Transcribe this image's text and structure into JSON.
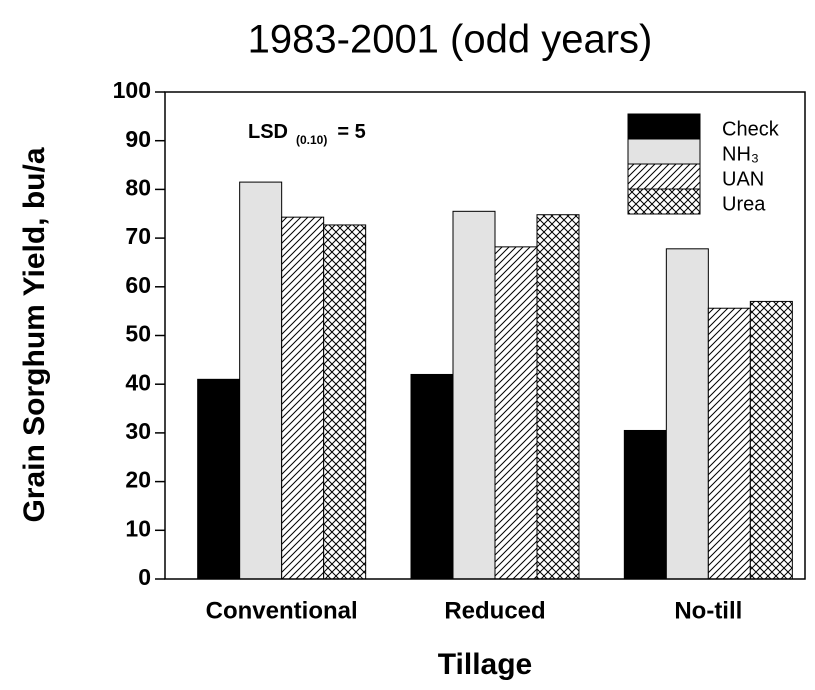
{
  "chart_data": {
    "type": "bar",
    "title": "1983-2001  (odd  years)",
    "x_label": "Tillage",
    "y_label": "Grain Sorghum Yield, bu/a",
    "annotation": [
      "LSD",
      "(0.10)",
      "= 5"
    ],
    "categories": [
      "Conventional",
      "Reduced",
      "No-till"
    ],
    "series": [
      {
        "name": "Check",
        "color": "#000000",
        "pattern": "solid",
        "values": [
          41,
          42,
          30.5
        ]
      },
      {
        "name": "NH₃",
        "color": "#e3e3e3",
        "pattern": "solid",
        "values": [
          81.5,
          75.5,
          67.8
        ]
      },
      {
        "name": "UAN",
        "color": "#000000",
        "pattern": "diagonal",
        "values": [
          74.3,
          68.2,
          55.6
        ]
      },
      {
        "name": "Urea",
        "color": "#000000",
        "pattern": "crosshatch",
        "values": [
          72.7,
          74.8,
          57
        ]
      }
    ],
    "ylim": [
      0,
      100
    ],
    "yticks": [
      0,
      10,
      20,
      30,
      40,
      50,
      60,
      70,
      80,
      90,
      100
    ],
    "legend": "upper right"
  }
}
